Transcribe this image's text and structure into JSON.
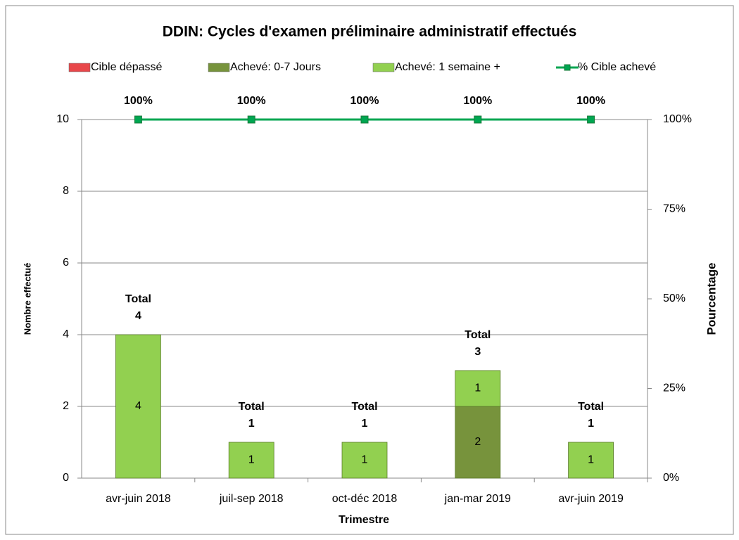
{
  "chart_data": {
    "type": "bar",
    "stacked": true,
    "title": "DDIN:  Cycles d'examen préliminaire administratif effectués",
    "xlabel": "Trimestre",
    "ylabel": "Nombre effectué",
    "y2label": "Pourcentage",
    "categories": [
      "avr-juin 2018",
      "juil-sep 2018",
      "oct-déc 2018",
      "jan-mar 2019",
      "avr-juin 2019"
    ],
    "series": [
      {
        "name": "Cible dépassé",
        "color": "#e8474a",
        "values": [
          0,
          0,
          0,
          0,
          0
        ]
      },
      {
        "name": "Achevé: 0-7 Jours",
        "color": "#77933c",
        "values": [
          0,
          0,
          0,
          2,
          0
        ]
      },
      {
        "name": "Achevé: 1 semaine +",
        "color": "#92d050",
        "values": [
          4,
          1,
          1,
          1,
          1
        ]
      },
      {
        "name": "% Cible achevé",
        "type": "line",
        "axis": "y2",
        "color": "#00a651",
        "values": [
          100,
          100,
          100,
          100,
          100
        ],
        "value_labels": [
          "100%",
          "100%",
          "100%",
          "100%",
          "100%"
        ]
      }
    ],
    "total_label": "Total",
    "totals": [
      4,
      1,
      1,
      3,
      1
    ],
    "ylim": [
      0,
      10
    ],
    "yticks": [
      0,
      2,
      4,
      6,
      8,
      10
    ],
    "y2lim": [
      0,
      100
    ],
    "y2ticks": [
      {
        "value": 0,
        "label": "0%"
      },
      {
        "value": 25,
        "label": "25%"
      },
      {
        "value": 50,
        "label": "50%"
      },
      {
        "value": 75,
        "label": "75%"
      },
      {
        "value": 100,
        "label": "100%"
      }
    ],
    "grid": true,
    "legend": "top"
  }
}
